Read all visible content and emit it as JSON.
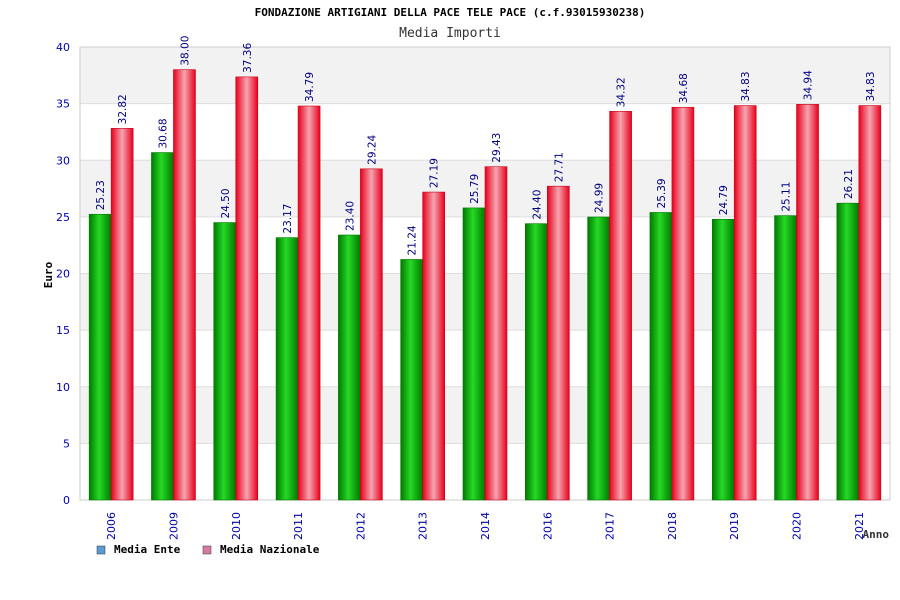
{
  "chart_data": {
    "type": "bar",
    "title": "FONDAZIONE ARTIGIANI DELLA PACE TELE PACE (c.f.93015930238)",
    "subtitle": "Media Importi",
    "xlabel": "Anno",
    "ylabel": "Euro",
    "ylim": [
      0,
      40
    ],
    "yticks": [
      "0",
      "5",
      "10",
      "15",
      "20",
      "25",
      "30",
      "35",
      "40"
    ],
    "categories": [
      "2006",
      "2009",
      "2010",
      "2011",
      "2012",
      "2013",
      "2014",
      "2016",
      "2017",
      "2018",
      "2019",
      "2020",
      "2021"
    ],
    "series": [
      {
        "name": "Media Ente",
        "values": [
          25.23,
          30.68,
          24.5,
          23.17,
          23.4,
          21.24,
          25.79,
          24.4,
          24.99,
          25.39,
          24.79,
          25.11,
          26.21
        ],
        "labels": [
          "25.23",
          "30.68",
          "24.50",
          "23.17",
          "23.40",
          "21.24",
          "25.79",
          "24.40",
          "24.99",
          "25.39",
          "24.79",
          "25.11",
          "26.21"
        ]
      },
      {
        "name": "Media Nazionale",
        "values": [
          32.82,
          38.0,
          37.36,
          34.79,
          29.24,
          27.19,
          29.43,
          27.71,
          34.32,
          34.68,
          34.83,
          34.94,
          34.83
        ],
        "labels": [
          "32.82",
          "38.00",
          "37.36",
          "34.79",
          "29.24",
          "27.19",
          "29.43",
          "27.71",
          "34.32",
          "34.68",
          "34.83",
          "34.94",
          "34.83"
        ]
      }
    ],
    "legend": {
      "placement": "bottom-left",
      "items": [
        {
          "label": "Media Ente",
          "color": "#5b9bd5"
        },
        {
          "label": "Media Nazionale",
          "color": "#d97aa5"
        }
      ]
    },
    "grid": true,
    "colors": {
      "ente_bar": "#00a800",
      "nazionale_bar": "#e8001c",
      "tick_text": "#0000aa",
      "value_text": "#000080",
      "band_fill": "#f2f2f2"
    }
  }
}
